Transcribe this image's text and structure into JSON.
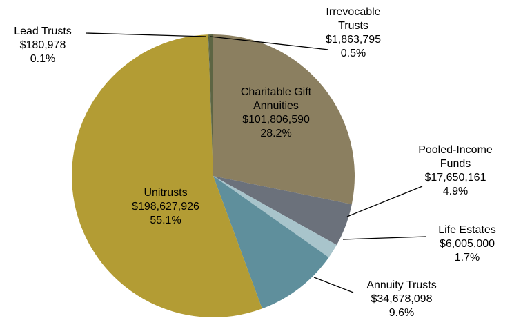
{
  "chart_data": {
    "type": "pie",
    "categories": [
      "Charitable Gift Annuities",
      "Pooled-Income Funds",
      "Life Estates",
      "Annuity Trusts",
      "Unitrusts",
      "Lead Trusts",
      "Irrevocable Trusts"
    ],
    "values": [
      101806590,
      17650161,
      6005000,
      34678098,
      198627926,
      180978,
      1863795
    ],
    "value_labels": [
      "$101,806,590",
      "$17,650,161",
      "$6,005,000",
      "$34,678,098",
      "$198,627,926",
      "$180,978",
      "$1,863,795"
    ],
    "percent_labels": [
      "28.2%",
      "4.9%",
      "1.7%",
      "9.6%",
      "55.1%",
      "0.1%",
      "0.5%"
    ],
    "colors": [
      "#8b7f60",
      "#6b717b",
      "#a8c4cb",
      "#5f8f9c",
      "#b39c34",
      "#4b5a39",
      "#5d6543"
    ]
  }
}
